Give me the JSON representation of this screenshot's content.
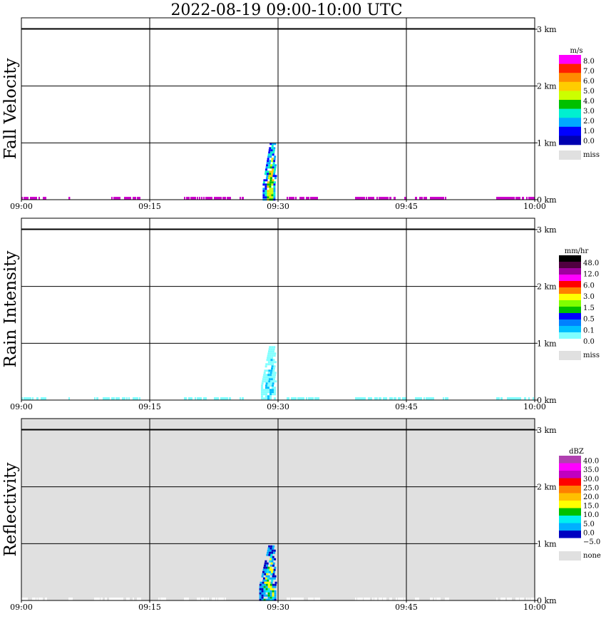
{
  "title": "2022-08-19   09:00-10:00 UTC",
  "colors": {
    "frame": "#000000",
    "missing": "#e0e0e0",
    "background": "#ffffff"
  },
  "chart_data": [
    {
      "type": "heatmap",
      "id": "fall-velocity",
      "ylabel": "Fall Velocity",
      "x_ticks": [
        "09:00",
        "09:15",
        "09:30",
        "09:45",
        "10:00"
      ],
      "xlim_minutes": [
        0,
        60
      ],
      "y_ticks": [
        "0 km",
        "1 km",
        "2 km",
        "3 km"
      ],
      "ylim_km": [
        0,
        3.2
      ],
      "grid": true,
      "legend": {
        "unit": "m/s",
        "placement": "right",
        "levels": [
          "8.0",
          "7.0",
          "6.0",
          "5.0",
          "4.0",
          "3.0",
          "2.0",
          "1.0",
          "0.0"
        ],
        "colors": [
          "#ff00ff",
          "#ff2000",
          "#ff8c00",
          "#ffcc00",
          "#ccff00",
          "#00c000",
          "#00f0d0",
          "#00aaff",
          "#0000ff",
          "#0000b0"
        ],
        "missing_label": "miss"
      },
      "echo": {
        "period_minutes": [
          28.2,
          29.7
        ],
        "top_km": 1.0,
        "core_colors": [
          "#00c000",
          "#ccff00",
          "#ffcc00"
        ],
        "edge_colors": [
          "#0000ff",
          "#00aaff",
          "#00f0d0"
        ]
      },
      "near_ground_noise": {
        "color": "#cc00cc",
        "segments_minutes": [
          [
            0,
            3
          ],
          [
            5.5,
            5.7
          ],
          [
            10.5,
            14
          ],
          [
            19,
            24.5
          ],
          [
            25.5,
            26
          ],
          [
            31,
            35
          ],
          [
            39,
            45
          ],
          [
            46,
            50
          ],
          [
            55.5,
            60
          ]
        ]
      },
      "missing_background": false
    },
    {
      "type": "heatmap",
      "id": "rain-intensity",
      "ylabel": "Rain Intensity",
      "x_ticks": [
        "09:00",
        "09:15",
        "09:30",
        "09:45",
        "10:00"
      ],
      "xlim_minutes": [
        0,
        60
      ],
      "y_ticks": [
        "0 km",
        "1 km",
        "2 km",
        "3 km"
      ],
      "ylim_km": [
        0,
        3.2
      ],
      "grid": true,
      "legend": {
        "unit": "mm/hr",
        "placement": "right",
        "levels": [
          "48.0",
          "12.0",
          "6.0",
          "3.0",
          "1.5",
          "0.5",
          "0.1",
          "0.0"
        ],
        "colors": [
          "#000000",
          "#500040",
          "#a000a0",
          "#ff00ff",
          "#ff0000",
          "#ff8000",
          "#ffff00",
          "#80ff00",
          "#00c000",
          "#0000ff",
          "#0080ff",
          "#00c0ff",
          "#80ffff",
          "#ffffff"
        ],
        "missing_label": "miss"
      },
      "echo": {
        "period_minutes": [
          28.0,
          29.7
        ],
        "top_km": 0.95,
        "core_colors": [
          "#00c0ff",
          "#80ffff"
        ],
        "edge_colors": [
          "#80ffff"
        ]
      },
      "near_ground_noise": {
        "color": "#80ffff",
        "segments_minutes": [
          [
            0,
            3
          ],
          [
            5.5,
            5.7
          ],
          [
            8.5,
            14
          ],
          [
            19,
            24.5
          ],
          [
            25.5,
            26
          ],
          [
            31,
            35
          ],
          [
            39,
            45
          ],
          [
            46,
            50
          ],
          [
            55.5,
            60
          ]
        ]
      },
      "missing_background": false
    },
    {
      "type": "heatmap",
      "id": "reflectivity",
      "ylabel": "Reflectivity",
      "x_ticks": [
        "09:00",
        "09:15",
        "09:30",
        "09:45",
        "10:00"
      ],
      "xlim_minutes": [
        0,
        60
      ],
      "y_ticks": [
        "0 km",
        "1 km",
        "2 km",
        "3 km"
      ],
      "ylim_km": [
        0,
        3.2
      ],
      "grid": true,
      "legend": {
        "unit": "dBZ",
        "placement": "right",
        "levels": [
          "40.0",
          "35.0",
          "30.0",
          "25.0",
          "20.0",
          "15.0",
          "10.0",
          "5.0",
          "0.0",
          "−5.0"
        ],
        "colors": [
          "#b040b0",
          "#ff00ff",
          "#c000c0",
          "#ff0000",
          "#ff8000",
          "#ffc000",
          "#ffff00",
          "#00c000",
          "#00f0f0",
          "#00b0ff",
          "#0000c0",
          "#ffffff"
        ],
        "missing_label": "none"
      },
      "echo": {
        "period_minutes": [
          27.8,
          29.7
        ],
        "top_km": 0.97,
        "core_colors": [
          "#00f0f0",
          "#00b0ff",
          "#00c000",
          "#ffff00"
        ],
        "edge_colors": [
          "#0000c0",
          "#00b0ff"
        ]
      },
      "near_ground_noise": {
        "color": "#ffffff",
        "segments_minutes": [
          [
            0,
            3
          ],
          [
            5.5,
            6
          ],
          [
            8.5,
            14
          ],
          [
            16,
            17
          ],
          [
            19,
            24.5
          ],
          [
            31,
            35
          ],
          [
            39,
            45
          ],
          [
            46,
            50
          ],
          [
            55.5,
            60
          ]
        ]
      },
      "missing_background": true
    }
  ]
}
